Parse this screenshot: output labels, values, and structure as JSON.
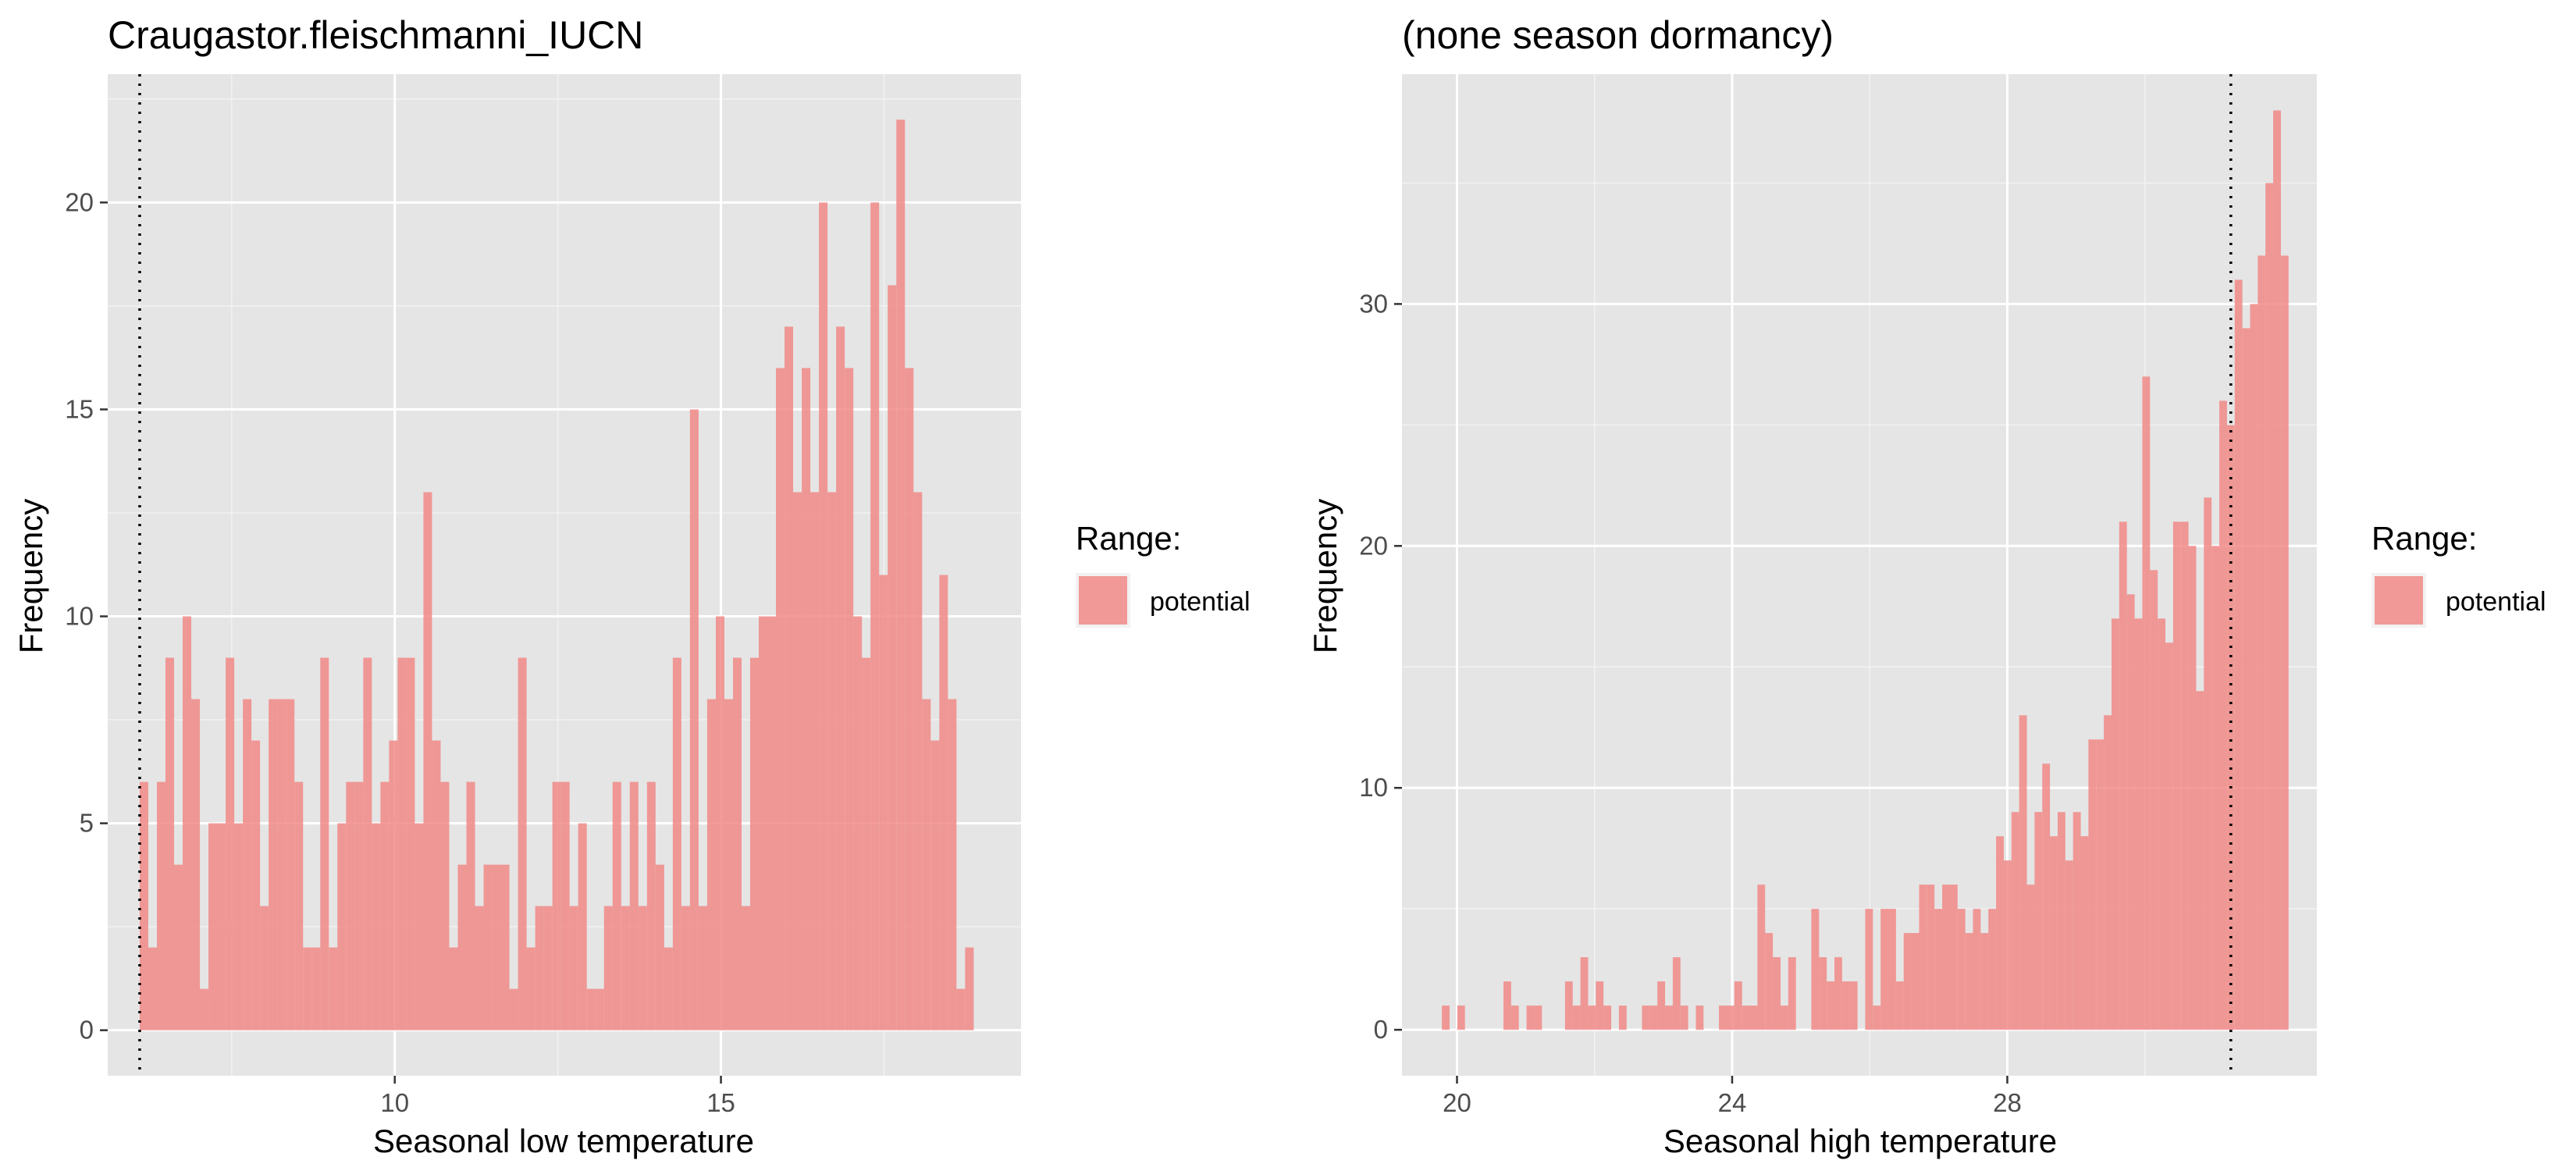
{
  "chart_data": [
    {
      "type": "bar",
      "title": "Craugastor.fleischmanni_IUCN",
      "xlabel": "Seasonal low temperature",
      "ylabel": "Frequency",
      "xlim": [
        5.6,
        19.6
      ],
      "ylim": [
        -1.1,
        23.1
      ],
      "xticks": [
        10,
        15
      ],
      "yticks": [
        0,
        5,
        10,
        15,
        20
      ],
      "bin_width": 0.1318,
      "x_start": 6.09,
      "values": [
        6,
        2,
        6,
        9,
        4,
        10,
        8,
        1,
        5,
        5,
        9,
        5,
        8,
        7,
        3,
        8,
        8,
        8,
        6,
        2,
        2,
        9,
        2,
        5,
        6,
        6,
        9,
        5,
        6,
        7,
        9,
        9,
        5,
        13,
        7,
        6,
        2,
        4,
        6,
        3,
        4,
        4,
        4,
        1,
        9,
        2,
        3,
        3,
        6,
        6,
        3,
        5,
        1,
        1,
        3,
        6,
        3,
        6,
        3,
        6,
        4,
        2,
        9,
        3,
        15,
        3,
        8,
        10,
        8,
        9,
        3,
        9,
        10,
        10,
        16,
        17,
        13,
        16,
        13,
        20,
        13,
        17,
        16,
        10,
        9,
        20,
        11,
        18,
        22,
        16,
        13,
        8,
        7,
        11,
        8,
        1,
        2
      ],
      "vline": 6.09,
      "vline_style": "dotted",
      "fill": "#f08a87",
      "grid": true,
      "legend": {
        "title": "Range:",
        "entries": [
          "potential"
        ],
        "placement": "right"
      }
    },
    {
      "type": "bar",
      "title": "(none season dormancy)",
      "xlabel": "Seasonal high temperature",
      "ylabel": "Frequency",
      "xlim": [
        19.2,
        32.5
      ],
      "ylim": [
        -1.9,
        39.5
      ],
      "xticks": [
        20,
        24,
        28
      ],
      "yticks": [
        0,
        10,
        20,
        30
      ],
      "bin_width": 0.1119,
      "x_start": 19.78,
      "values": [
        1,
        0,
        1,
        0,
        0,
        0,
        0,
        0,
        2,
        1,
        0,
        1,
        1,
        0,
        0,
        0,
        2,
        1,
        3,
        1,
        2,
        1,
        0,
        1,
        0,
        0,
        1,
        1,
        2,
        1,
        3,
        1,
        0,
        1,
        0,
        0,
        1,
        1,
        2,
        1,
        1,
        6,
        4,
        3,
        1,
        3,
        0,
        0,
        5,
        3,
        2,
        3,
        2,
        2,
        0,
        5,
        1,
        5,
        5,
        2,
        4,
        4,
        6,
        6,
        5,
        6,
        6,
        5,
        4,
        5,
        4,
        5,
        8,
        7,
        9,
        13,
        6,
        9,
        11,
        8,
        9,
        7,
        9,
        8,
        12,
        12,
        13,
        17,
        21,
        18,
        17,
        27,
        19,
        17,
        16,
        21,
        21,
        20,
        14,
        22,
        20,
        26,
        25,
        31,
        29,
        30,
        32,
        35,
        38,
        32
      ],
      "vline": 31.25,
      "vline_style": "dotted",
      "fill": "#f08a87",
      "grid": true,
      "legend": {
        "title": "Range:",
        "entries": [
          "potential"
        ],
        "placement": "right"
      }
    }
  ]
}
